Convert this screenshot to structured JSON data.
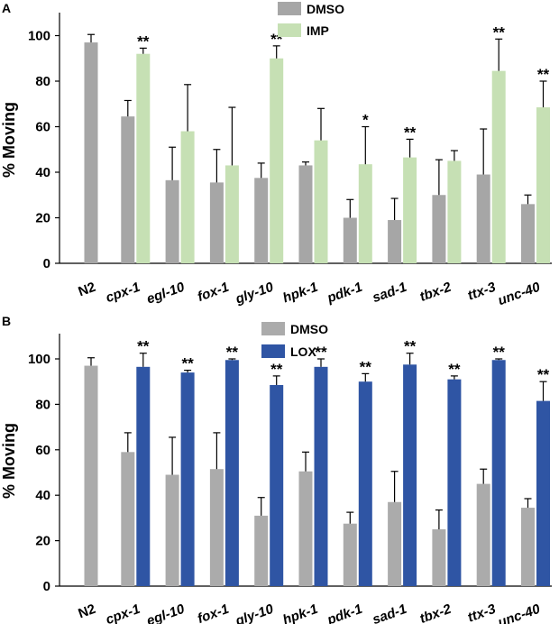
{
  "figure": {
    "panels": [
      "A",
      "B"
    ]
  },
  "chart_data": [
    {
      "panel": "A",
      "type": "bar",
      "ylabel": "% Moving",
      "xlabel": "",
      "ylim": [
        0,
        110
      ],
      "yticks": [
        "0",
        "20",
        "40",
        "60",
        "80",
        "100"
      ],
      "categories": [
        "N2",
        "cpx-1",
        "egl-10",
        "fox-1",
        "gly-10",
        "hpk-1",
        "pdk-1",
        "sad-1",
        "tbx-2",
        "ttx-3",
        "unc-40"
      ],
      "legend_position": "top-center",
      "series": [
        {
          "name": "DMSO",
          "color": "#a6a6a6",
          "values": [
            97,
            64.5,
            36.5,
            35.5,
            37.5,
            43,
            20,
            19,
            30,
            39,
            26
          ],
          "errors": [
            3.5,
            7,
            14.5,
            14.5,
            6.5,
            1.5,
            8,
            9.5,
            15.5,
            20,
            4
          ]
        },
        {
          "name": "IMP",
          "color": "#c6e0b4",
          "values": [
            null,
            92,
            58,
            43,
            90,
            54,
            43.5,
            46.5,
            45,
            84.5,
            68.5
          ],
          "errors": [
            null,
            2.5,
            20.5,
            25.5,
            5.5,
            14,
            16.5,
            8,
            4.5,
            14,
            11.5
          ],
          "significance": [
            "",
            "**",
            "",
            "",
            "**",
            "",
            "*",
            "**",
            "",
            "**",
            "**"
          ]
        }
      ]
    },
    {
      "panel": "B",
      "type": "bar",
      "ylabel": "% Moving",
      "xlabel": "",
      "ylim": [
        0,
        110
      ],
      "yticks": [
        "0",
        "20",
        "40",
        "60",
        "80",
        "100"
      ],
      "categories": [
        "N2",
        "cpx-1",
        "egl-10",
        "fox-1",
        "gly-10",
        "hpk-1",
        "pdk-1",
        "sad-1",
        "tbx-2",
        "ttx-3",
        "unc-40"
      ],
      "legend_position": "top-center",
      "series": [
        {
          "name": "DMSO",
          "color": "#ababab",
          "values": [
            97,
            59,
            49,
            51.5,
            31,
            50.5,
            27.5,
            37,
            25,
            45,
            34.5
          ],
          "errors": [
            3.5,
            8.5,
            16.5,
            16,
            8,
            8.5,
            5,
            13.5,
            8.5,
            6.5,
            4
          ]
        },
        {
          "name": "LOX",
          "color": "#2f55a4",
          "values": [
            null,
            96.5,
            94,
            99.5,
            88.5,
            96.5,
            90,
            97.5,
            91,
            99.5,
            81.5
          ],
          "errors": [
            null,
            6,
            1,
            0.5,
            4,
            3.5,
            3.5,
            5,
            1.5,
            0.5,
            8.5
          ],
          "significance": [
            "",
            "**",
            "**",
            "**",
            "**",
            "**",
            "**",
            "**",
            "**",
            "**",
            "**"
          ]
        }
      ]
    }
  ]
}
